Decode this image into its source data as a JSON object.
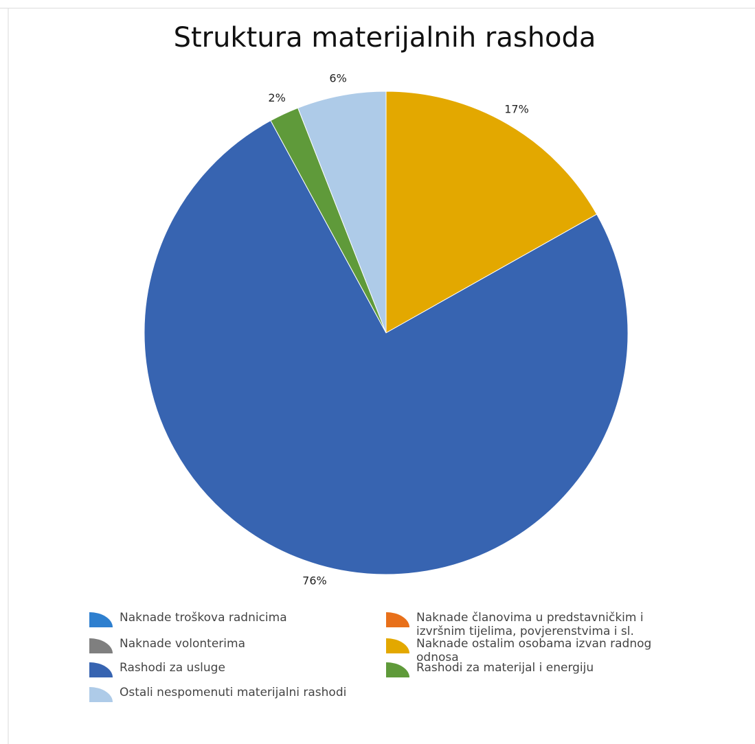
{
  "chart_data": {
    "type": "pie",
    "title": "Struktura materijalnih rashoda",
    "categories": [
      "Naknade troškova radnicima",
      "Naknade članovima u predstavničkim i izvršnim tijelima, povjerenstvima i sl.",
      "Naknade volonterima",
      "Naknade ostalim osobama izvan radnog odnosa",
      "Rashodi za usluge",
      "Rashodi za materijal i energiju",
      "Ostali nespomenuti materijalni rashodi"
    ],
    "values": [
      0,
      0,
      0,
      17,
      76,
      2,
      6
    ],
    "value_labels": [
      null,
      null,
      null,
      "17%",
      "76%",
      "2%",
      "6%"
    ],
    "colors": [
      "#2e7fcf",
      "#e8701a",
      "#7f7f7f",
      "#e3a800",
      "#3764b1",
      "#5f9a3a",
      "#aecbe8"
    ]
  }
}
